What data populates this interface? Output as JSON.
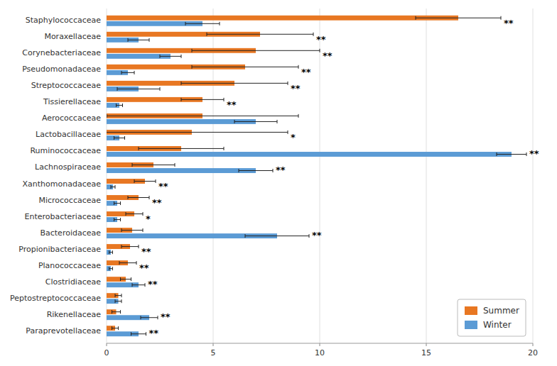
{
  "chart_data": {
    "type": "bar",
    "orientation": "horizontal",
    "categories": [
      "Staphylococcaceae",
      "Moraxellaceae",
      "Corynebacteriaceae",
      "Pseudomonadaceae",
      "Streptococcaceae",
      "Tissierellaceae",
      "Aerococcaceae",
      "Lactobacillaceae",
      "Ruminococcaceae",
      "Lachnospiraceae",
      "Xanthomonadaceae",
      "Micrococcaceae",
      "Enterobacteriaceae",
      "Bacteroidaceae",
      "Propionibacteriaceae",
      "Planococcaceae",
      "Clostridiaceae",
      "Peptostreptococcaceae",
      "Rikenellaceae",
      "Paraprevotellaceae"
    ],
    "series": [
      {
        "name": "Summer",
        "color": "#E87722",
        "values": [
          16.5,
          7.2,
          7.0,
          6.5,
          6.0,
          4.5,
          4.5,
          4.0,
          3.5,
          2.2,
          1.8,
          1.5,
          1.3,
          1.2,
          1.1,
          1.0,
          0.9,
          0.55,
          0.45,
          0.4
        ],
        "errors": [
          2.0,
          2.5,
          3.0,
          2.5,
          2.5,
          1.0,
          4.5,
          4.5,
          2.0,
          1.0,
          0.5,
          0.5,
          0.4,
          0.5,
          0.4,
          0.4,
          0.25,
          0.15,
          0.2,
          0.15
        ]
      },
      {
        "name": "Winter",
        "color": "#5B9BD5",
        "values": [
          4.5,
          1.5,
          3.0,
          1.0,
          1.5,
          0.6,
          7.0,
          0.6,
          19.0,
          7.0,
          0.3,
          0.5,
          0.5,
          8.0,
          0.2,
          0.2,
          1.5,
          0.55,
          2.0,
          1.5
        ],
        "errors": [
          0.8,
          0.5,
          0.5,
          0.3,
          1.0,
          0.15,
          1.0,
          0.25,
          0.7,
          0.8,
          0.1,
          0.15,
          0.15,
          1.5,
          0.08,
          0.08,
          0.3,
          0.15,
          0.4,
          0.35
        ]
      }
    ],
    "annotations": [
      "**",
      "**",
      "**",
      "**",
      "**",
      "**",
      null,
      "*",
      "**",
      "**",
      "**",
      "**",
      "*",
      "**",
      "**",
      "**",
      "**",
      null,
      "**",
      "**"
    ],
    "xlim": [
      0,
      20
    ],
    "xticks": [
      0,
      5,
      10,
      15,
      20
    ],
    "grid": true,
    "legend": "lower right"
  }
}
